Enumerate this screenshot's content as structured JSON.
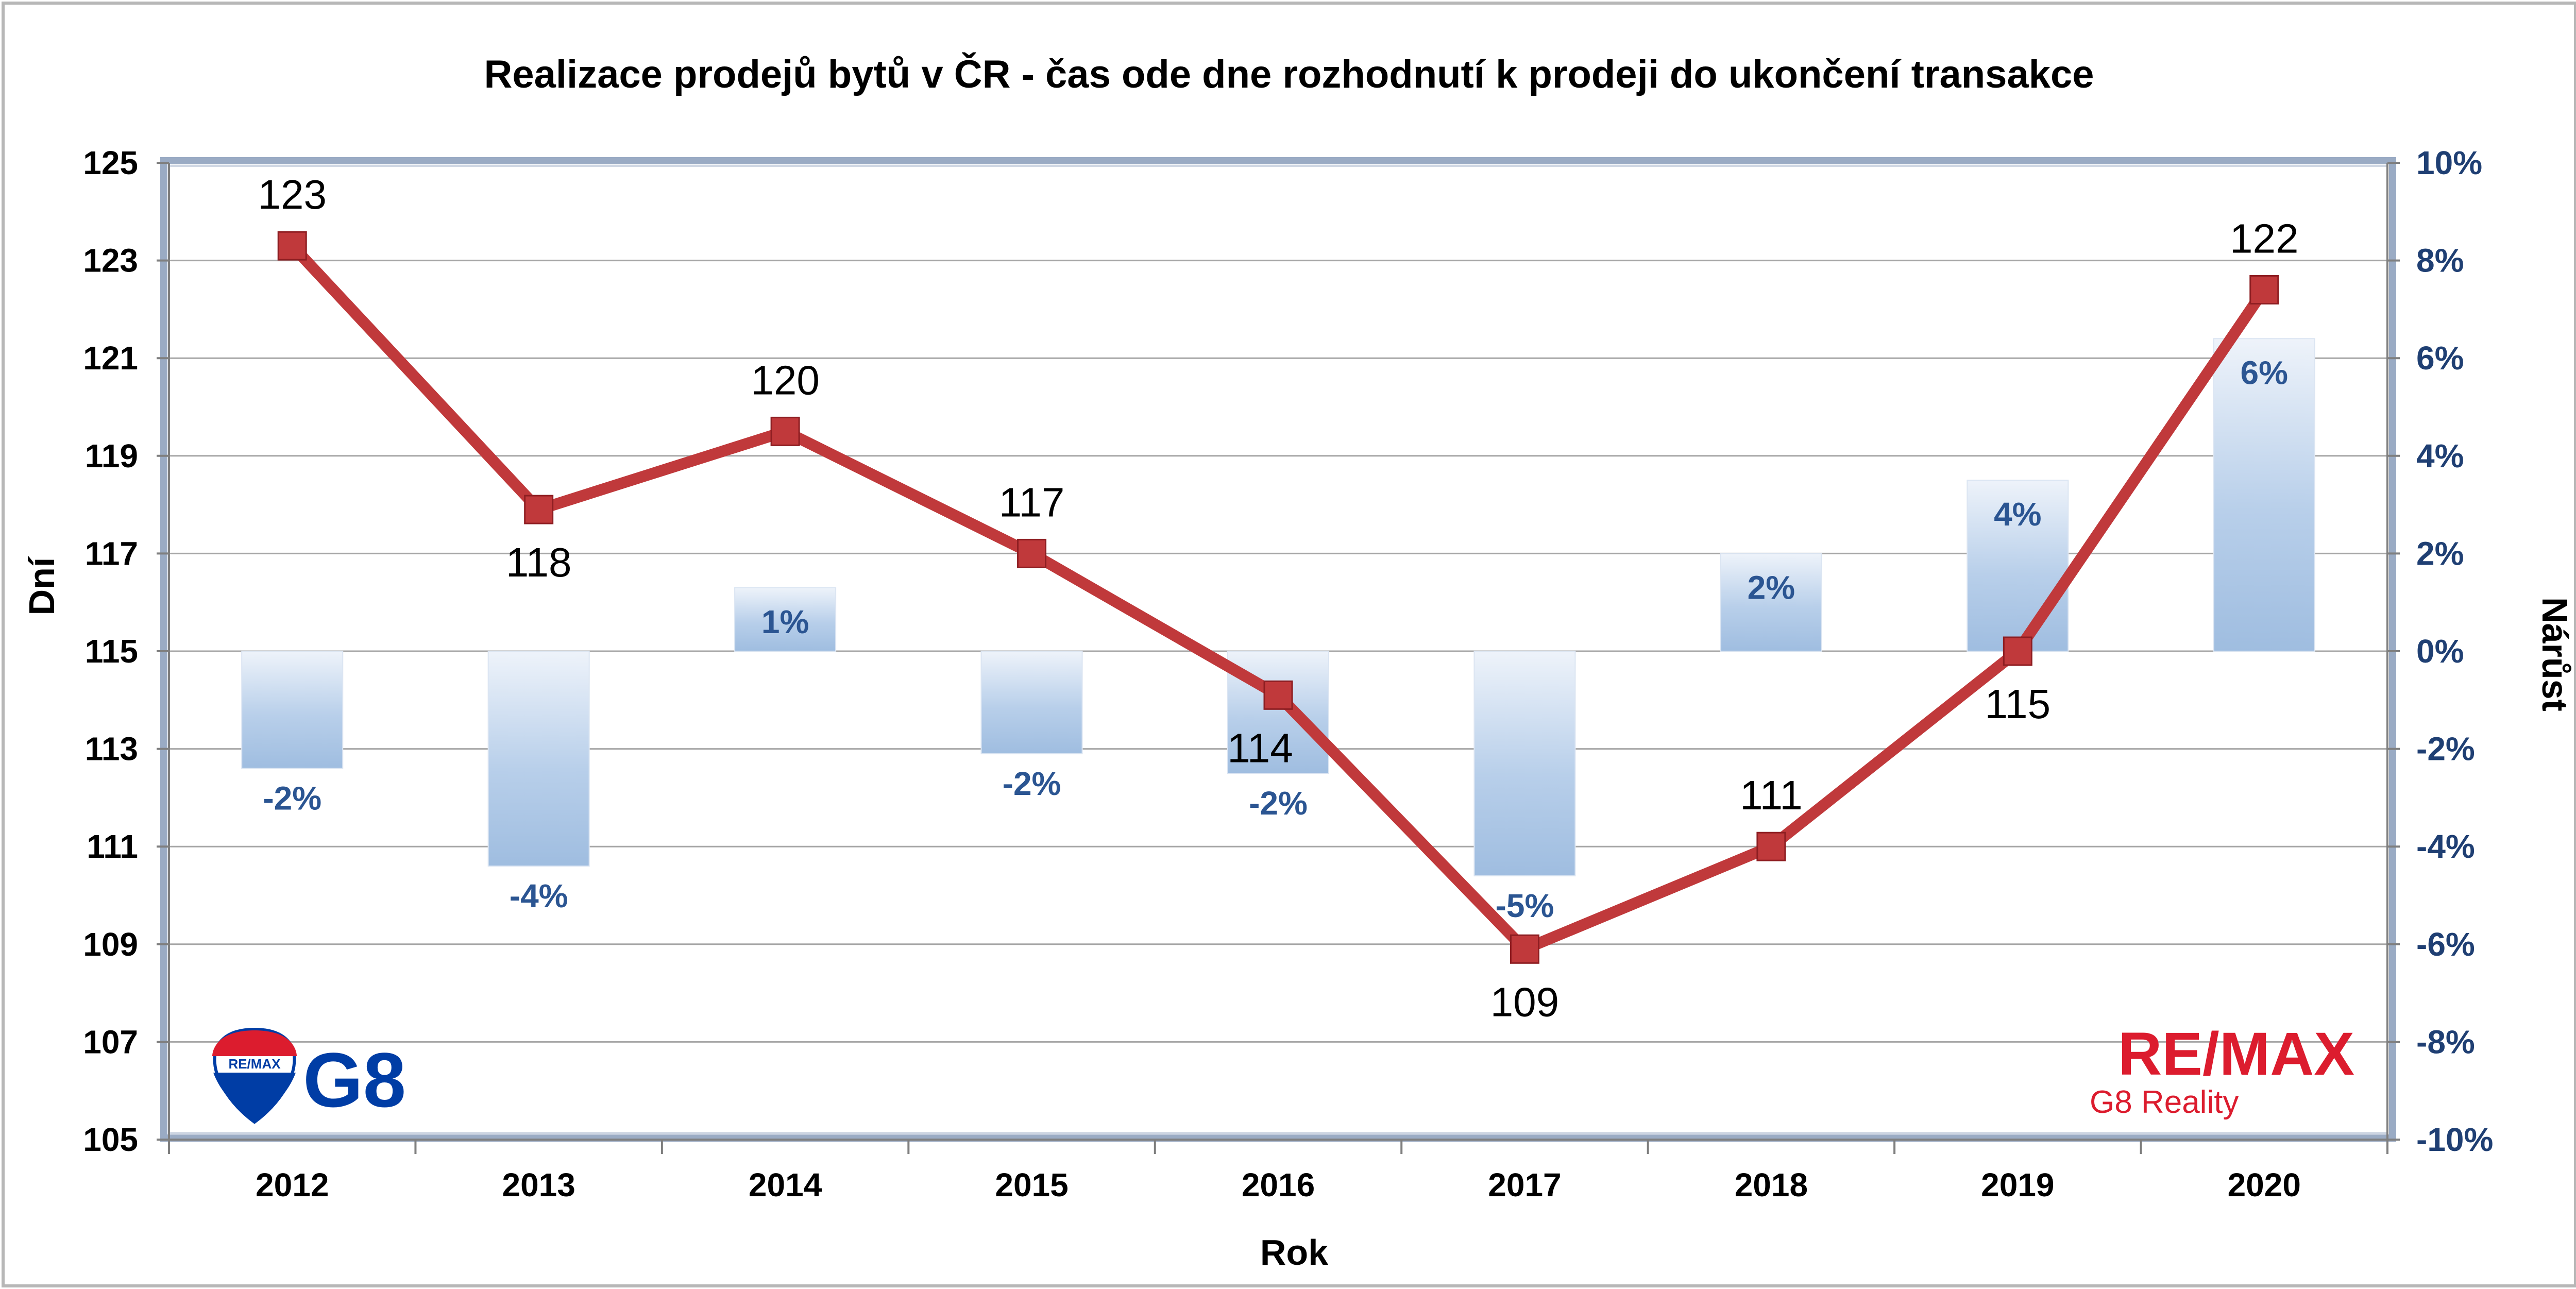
{
  "chart_data": {
    "type": "bar+line",
    "title": "Realizace prodejů bytů v ČR - čas ode dne rozhodnutí k prodeji do ukončení transakce",
    "xlabel": "Rok",
    "ylabel_left": "Dní",
    "ylabel_right": "Nárůst",
    "categories": [
      "2012",
      "2013",
      "2014",
      "2015",
      "2016",
      "2017",
      "2018",
      "2019",
      "2020"
    ],
    "ylim_left": [
      105,
      125
    ],
    "yticks_left": [
      "105",
      "107",
      "109",
      "111",
      "113",
      "115",
      "117",
      "119",
      "121",
      "123",
      "125"
    ],
    "ylim_right": [
      -10,
      10
    ],
    "yticks_right": [
      "-10%",
      "-8%",
      "-6%",
      "-4%",
      "-2%",
      "0%",
      "2%",
      "4%",
      "6%",
      "8%",
      "10%"
    ],
    "series": [
      {
        "kind": "line",
        "axis": "left",
        "values": [
          123.3,
          117.9,
          119.5,
          117.0,
          114.1,
          108.9,
          111.0,
          115.0,
          122.4
        ],
        "labels": [
          "123",
          "118",
          "120",
          "117",
          "114",
          "109",
          "111",
          "115",
          "122"
        ],
        "color": "#c0393b"
      },
      {
        "kind": "bar",
        "axis": "right",
        "values": [
          -2.4,
          -4.4,
          1.3,
          -2.1,
          -2.5,
          -4.6,
          2.0,
          3.5,
          6.4
        ],
        "labels": [
          "-2%",
          "-4%",
          "1%",
          "-2%",
          "-2%",
          "-5%",
          "2%",
          "4%",
          "6%"
        ],
        "color": "#9fbde0"
      }
    ],
    "grid": true,
    "legend": "none"
  },
  "branding": {
    "remax_logo": "RE/MAX",
    "remax_sub": "G8 Reality",
    "g8_logo": "G8",
    "balloon_text": "RE/MAX",
    "remax_red": "#dc1c2e",
    "remax_blue": "#003da5"
  }
}
